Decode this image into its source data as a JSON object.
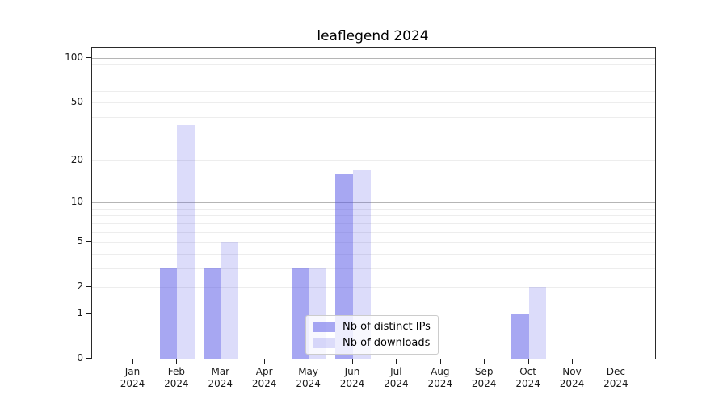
{
  "chart_data": {
    "type": "bar",
    "title": "leaflegend 2024",
    "categories": [
      "Jan",
      "Feb",
      "Mar",
      "Apr",
      "May",
      "Jun",
      "Jul",
      "Aug",
      "Sep",
      "Oct",
      "Nov",
      "Dec"
    ],
    "category_year": "2024",
    "series": [
      {
        "name": "Nb of distinct IPs",
        "color": "#5050e6",
        "alpha": 0.5,
        "values": [
          0,
          3,
          3,
          0,
          3,
          16,
          0,
          0,
          0,
          1,
          0,
          0
        ]
      },
      {
        "name": "Nb of downloads",
        "color": "#5050e6",
        "alpha": 0.2,
        "values": [
          0,
          35,
          5,
          0,
          3,
          17,
          0,
          0,
          0,
          2,
          0,
          0
        ]
      }
    ],
    "yscale": "log1p",
    "ylim": [
      0,
      117
    ],
    "ytick_labels": [
      0,
      1,
      2,
      5,
      10,
      20,
      50,
      100
    ],
    "major_gridlines": [
      1,
      10,
      100
    ],
    "minor_gridlines": [
      2,
      3,
      4,
      5,
      6,
      7,
      8,
      9,
      20,
      30,
      40,
      50,
      60,
      70,
      80,
      90
    ],
    "grid": "horizontal",
    "legend_position": "lower center",
    "colors": {
      "axis": "#1a1a1a",
      "gridline_major": "#b5b5b5",
      "gridline_minor": "#ededed",
      "background": "#ffffff"
    }
  }
}
